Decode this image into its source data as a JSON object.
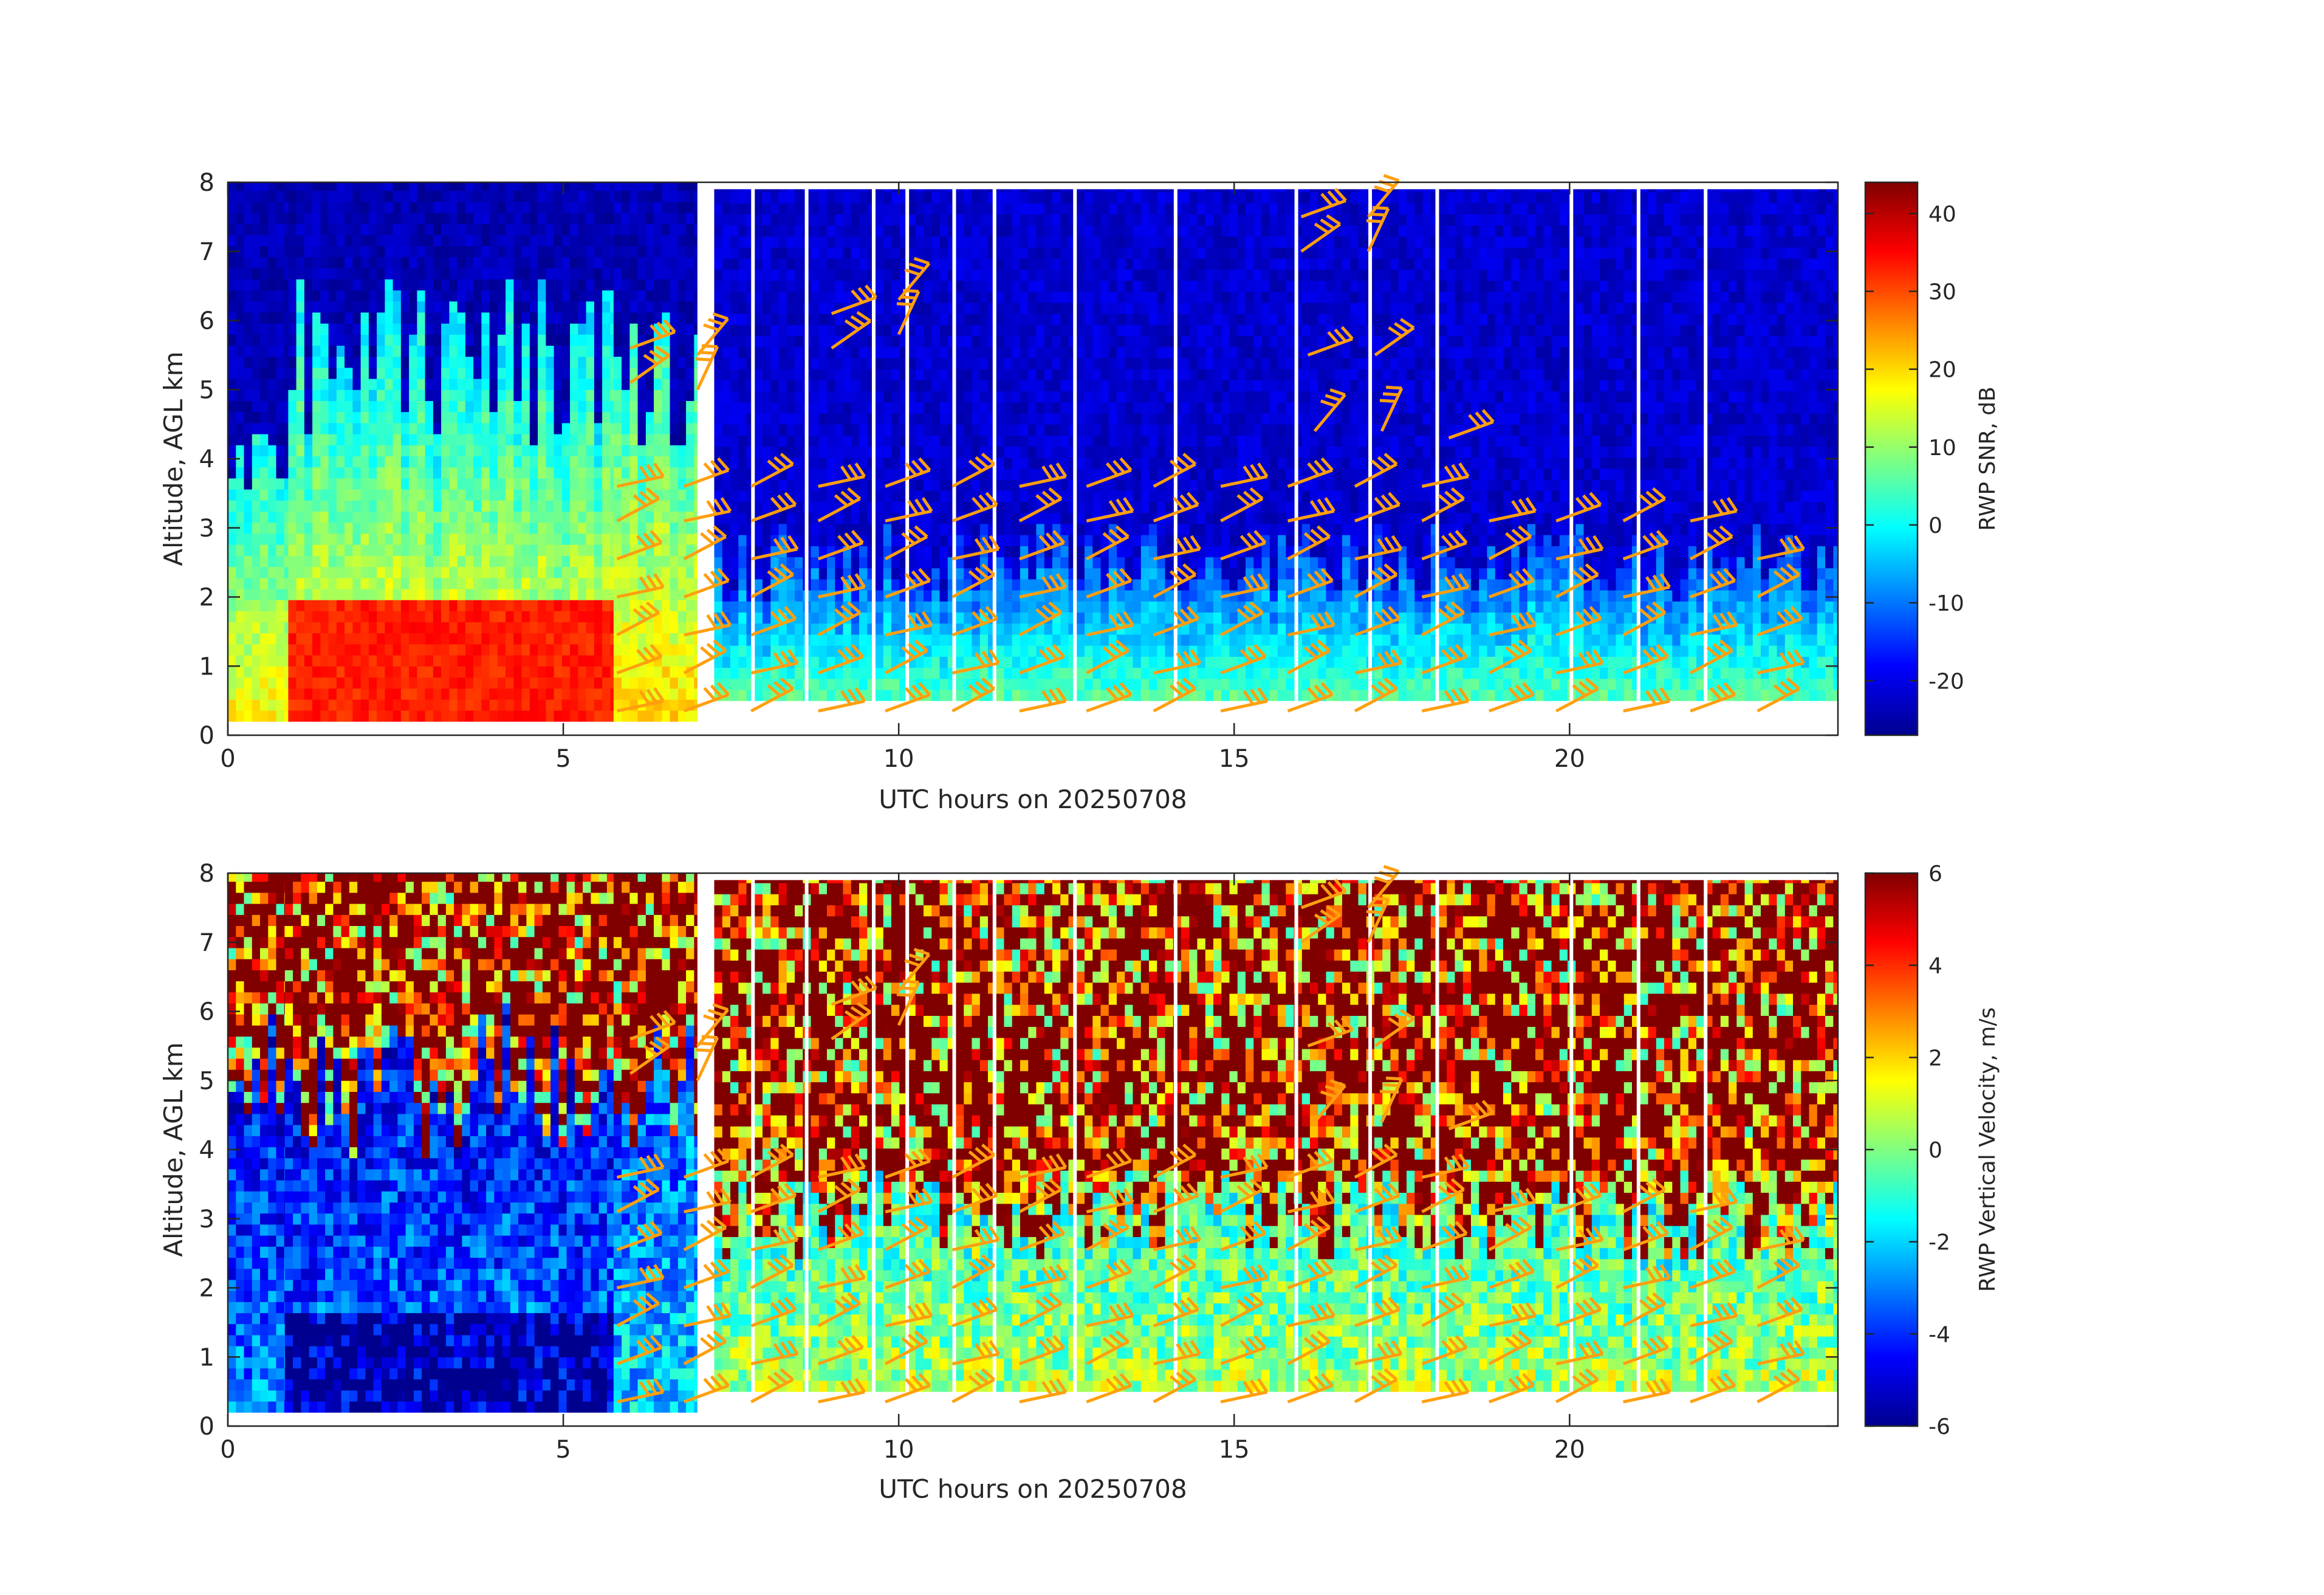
{
  "colors": {
    "jet": [
      "#00008f",
      "#0000ff",
      "#0080ff",
      "#00ffff",
      "#80ff80",
      "#ffff00",
      "#ff8000",
      "#ff0000",
      "#800000"
    ],
    "barb": "#ff9f0f",
    "axis": "#262626"
  },
  "chart_data": [
    {
      "type": "heatmap",
      "panel": "top",
      "xlabel": "UTC hours on 20250708",
      "ylabel": "Altitude, AGL km",
      "xlim": [
        0,
        24
      ],
      "ylim": [
        0,
        8
      ],
      "xticks": [
        "0",
        "5",
        "10",
        "15",
        "20"
      ],
      "yticks": [
        "0",
        "1",
        "2",
        "3",
        "4",
        "5",
        "6",
        "7",
        "8"
      ],
      "colorbar": {
        "label": "RWP SNR, dB",
        "clim": [
          -27,
          44
        ],
        "ticks": [
          "-20",
          "-10",
          "0",
          "10",
          "20",
          "30",
          "40"
        ]
      },
      "regimes": [
        {
          "x": [
            0,
            0.9
          ],
          "bottom": 0.2,
          "top": 8.0,
          "surface_value": 18,
          "top_height": 4.5,
          "value_above": -24
        },
        {
          "x": [
            0.9,
            5.75
          ],
          "bottom": 0.2,
          "top": 8.0,
          "surface_value": 33,
          "layer_top": 1.8,
          "mid_value": 20,
          "top_height": 5.5,
          "value_above": -24
        },
        {
          "x": [
            5.75,
            7.0
          ],
          "bottom": 0.2,
          "top": 8.0,
          "surface_value": 20,
          "top_height": 5.2,
          "value_above": -24
        },
        {
          "x": [
            7.25,
            24.0
          ],
          "bottom": 0.5,
          "top": 7.9,
          "surface_value": 5,
          "top_height": 2.5,
          "value_above": -22
        }
      ],
      "data_gaps_hours": [
        7.0,
        7.8,
        8.6,
        9.6,
        10.1,
        10.8,
        11.4,
        12.6,
        14.1,
        15.9,
        17.0,
        18.0,
        20.0,
        21.0,
        22.0
      ]
    },
    {
      "type": "heatmap",
      "panel": "bottom",
      "xlabel": "UTC hours on 20250708",
      "ylabel": "Altitude, AGL km",
      "xlim": [
        0,
        24
      ],
      "ylim": [
        0,
        8
      ],
      "xticks": [
        "0",
        "5",
        "10",
        "15",
        "20"
      ],
      "yticks": [
        "0",
        "1",
        "2",
        "3",
        "4",
        "5",
        "6",
        "7",
        "8"
      ],
      "colorbar": {
        "label": "RWP Vertical Velocity, m/s",
        "clim": [
          -6,
          6
        ],
        "ticks": [
          "-6",
          "-4",
          "-2",
          "0",
          "2",
          "4",
          "6"
        ]
      },
      "regimes": [
        {
          "x": [
            0,
            0.85
          ],
          "bottom": 0.2,
          "top": 8.0,
          "surface_value": -3,
          "top_height": 5.0,
          "value_above": 6
        },
        {
          "x": [
            0.85,
            5.75
          ],
          "bottom": 0.2,
          "top": 8.0,
          "surface_value": -6,
          "layer_top": 1.5,
          "mid_value": -3,
          "top_height": 5.0,
          "value_above": 6
        },
        {
          "x": [
            5.75,
            7.0
          ],
          "bottom": 0.2,
          "top": 8.0,
          "surface_value": -2,
          "top_height": 5.0,
          "value_above": 6
        },
        {
          "x": [
            7.25,
            24.0
          ],
          "bottom": 0.5,
          "top": 7.9,
          "surface_value": 0.5,
          "top_height": 3.0,
          "value_above": 6
        }
      ]
    }
  ],
  "wind_barbs": {
    "columns_hours": [
      5.8,
      6.8,
      7.8,
      8.8,
      9.8,
      10.8,
      11.8,
      12.8,
      13.8,
      14.8,
      15.8,
      16.8,
      17.8,
      18.8,
      19.8,
      20.8,
      21.8,
      22.8
    ],
    "heights_km": [
      0.35,
      0.9,
      1.45,
      2.0,
      2.55,
      3.1,
      3.6
    ],
    "upper_barbs": [
      {
        "x": 6.0,
        "y": 5.6
      },
      {
        "x": 6.0,
        "y": 5.1
      },
      {
        "x": 7.0,
        "y": 5.5
      },
      {
        "x": 7.0,
        "y": 5.0
      },
      {
        "x": 9.0,
        "y": 6.1
      },
      {
        "x": 9.0,
        "y": 5.6
      },
      {
        "x": 10.0,
        "y": 6.3
      },
      {
        "x": 10.0,
        "y": 5.8
      },
      {
        "x": 16.0,
        "y": 7.5
      },
      {
        "x": 16.0,
        "y": 7.0
      },
      {
        "x": 17.0,
        "y": 7.5
      },
      {
        "x": 17.0,
        "y": 7.0
      },
      {
        "x": 16.1,
        "y": 5.5
      },
      {
        "x": 17.1,
        "y": 5.5
      },
      {
        "x": 16.2,
        "y": 4.4
      },
      {
        "x": 17.2,
        "y": 4.4
      },
      {
        "x": 18.2,
        "y": 4.3
      }
    ]
  }
}
